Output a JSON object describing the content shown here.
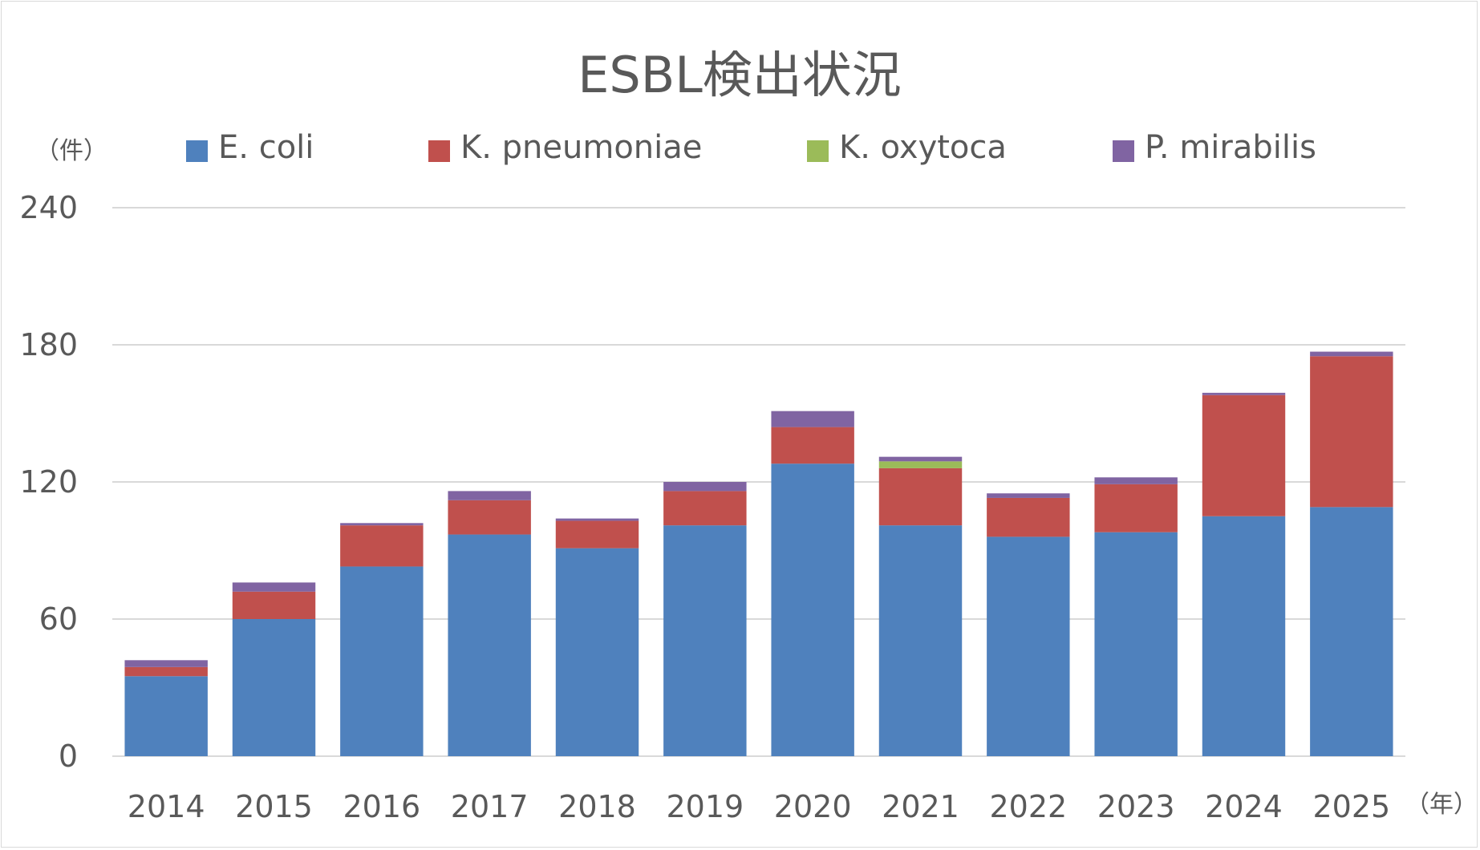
{
  "chart_data": {
    "type": "bar",
    "stacked": true,
    "title": "ESBL検出状況",
    "y_unit_label": "（件）",
    "x_unit_label": "（年）",
    "categories": [
      "2014",
      "2015",
      "2016",
      "2017",
      "2018",
      "2019",
      "2020",
      "2021",
      "2022",
      "2023",
      "2024",
      "2025"
    ],
    "series": [
      {
        "name": "E. coli",
        "color": "#4f81bd",
        "values": [
          35,
          60,
          83,
          97,
          91,
          101,
          128,
          101,
          96,
          98,
          105,
          109
        ]
      },
      {
        "name": "K. pneumoniae",
        "color": "#c0504d",
        "values": [
          4,
          12,
          18,
          15,
          12,
          15,
          16,
          25,
          17,
          21,
          53,
          66
        ]
      },
      {
        "name": "K. oxytoca",
        "color": "#9bbb59",
        "values": [
          0,
          0,
          0,
          0,
          0,
          0,
          0,
          3,
          0,
          0,
          0,
          0
        ]
      },
      {
        "name": "P. mirabilis",
        "color": "#8064a2",
        "values": [
          3,
          4,
          1,
          4,
          1,
          4,
          7,
          2,
          2,
          3,
          1,
          2
        ]
      }
    ],
    "ylim": [
      0,
      240
    ],
    "yticks": [
      0,
      60,
      120,
      180,
      240
    ],
    "grid": true,
    "legend_position": "top"
  }
}
